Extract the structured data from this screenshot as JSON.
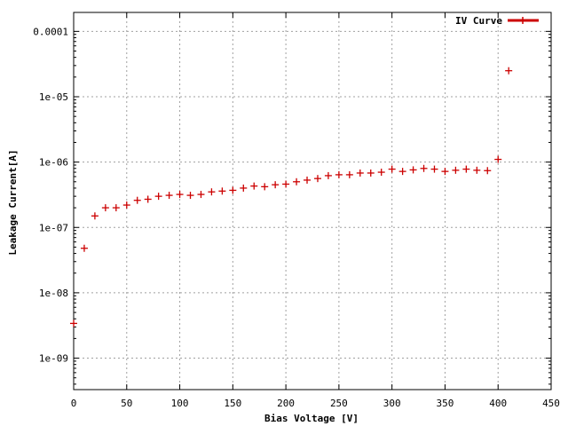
{
  "chart_data": {
    "type": "scatter",
    "title": "",
    "xlabel": "Bias Voltage [V]",
    "ylabel": "Leakage Current[A]",
    "x_scale": "linear",
    "y_scale": "log",
    "xlim": [
      0,
      450
    ],
    "ylim": [
      3.3e-10,
      0.000195
    ],
    "grid": true,
    "legend_position": "top-right",
    "x_ticks": [
      0,
      50,
      100,
      150,
      200,
      250,
      300,
      350,
      400,
      450
    ],
    "x_tick_labels": [
      "0",
      "50",
      "100",
      "150",
      "200",
      "250",
      "300",
      "350",
      "400",
      "450"
    ],
    "y_ticks": [
      1e-09,
      1e-08,
      1e-07,
      1e-06,
      1e-05,
      0.0001
    ],
    "y_tick_labels": [
      "1e-09",
      "1e-08",
      "1e-07",
      "1e-06",
      "1e-05",
      "0.0001"
    ],
    "series": [
      {
        "name": "IV Curve",
        "color": "#cc0000",
        "marker": "plus",
        "x": [
          0,
          10,
          20,
          30,
          40,
          50,
          60,
          70,
          80,
          90,
          100,
          110,
          120,
          130,
          140,
          150,
          160,
          170,
          180,
          190,
          200,
          210,
          220,
          230,
          240,
          250,
          260,
          270,
          280,
          290,
          300,
          310,
          320,
          330,
          340,
          350,
          360,
          370,
          380,
          390,
          400,
          410
        ],
        "y": [
          3.4e-09,
          4.8e-08,
          1.5e-07,
          2e-07,
          2e-07,
          2.2e-07,
          2.6e-07,
          2.7e-07,
          3e-07,
          3.1e-07,
          3.2e-07,
          3.1e-07,
          3.2e-07,
          3.5e-07,
          3.6e-07,
          3.7e-07,
          4e-07,
          4.3e-07,
          4.2e-07,
          4.5e-07,
          4.6e-07,
          5e-07,
          5.3e-07,
          5.6e-07,
          6.2e-07,
          6.4e-07,
          6.4e-07,
          6.8e-07,
          6.8e-07,
          7e-07,
          7.8e-07,
          7.2e-07,
          7.6e-07,
          8e-07,
          7.8e-07,
          7.2e-07,
          7.5e-07,
          7.8e-07,
          7.5e-07,
          7.4e-07,
          1.1e-06,
          2.5e-05
        ]
      }
    ]
  }
}
